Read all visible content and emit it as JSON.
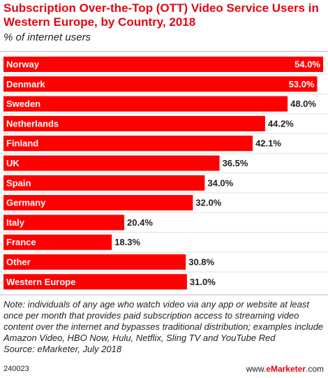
{
  "header": {
    "title": "Subscription Over-the-Top (OTT) Video Service Users in Western Europe, by Country, 2018",
    "subtitle": "% of internet users"
  },
  "footer": {
    "note": "Note: individuals of any age who watch video via any app or website at least once per month that provides paid subscription access to streaming video content over the internet and bypasses traditional distribution; examples include Amazon Video, HBO Now, Hulu, Netflix, Sling TV and YouTube Red",
    "source": "Source: eMarketer, July 2018",
    "id": "240023",
    "brand_prefix": "www.",
    "brand_accent": "eMarketer",
    "brand_suffix": ".com"
  },
  "chart_data": {
    "type": "bar",
    "orientation": "horizontal",
    "categories": [
      "Norway",
      "Denmark",
      "Sweden",
      "Netherlands",
      "Finland",
      "UK",
      "Spain",
      "Germany",
      "Italy",
      "France",
      "Other",
      "Western Europe"
    ],
    "values": [
      54.0,
      53.0,
      48.0,
      44.2,
      42.1,
      36.5,
      34.0,
      32.0,
      20.4,
      18.3,
      30.8,
      31.0
    ],
    "value_labels": [
      "54.0%",
      "53.0%",
      "48.0%",
      "44.2%",
      "42.1%",
      "36.5%",
      "34.0%",
      "32.0%",
      "20.4%",
      "18.3%",
      "30.8%",
      "31.0%"
    ],
    "title": "",
    "xlabel": "",
    "ylabel": "",
    "xlim": [
      0,
      54
    ],
    "grid": false,
    "legend": "none",
    "bar_color": "#ff0000",
    "label_color_on_bar": "#ffffff",
    "label_color_outside": "#222222"
  }
}
